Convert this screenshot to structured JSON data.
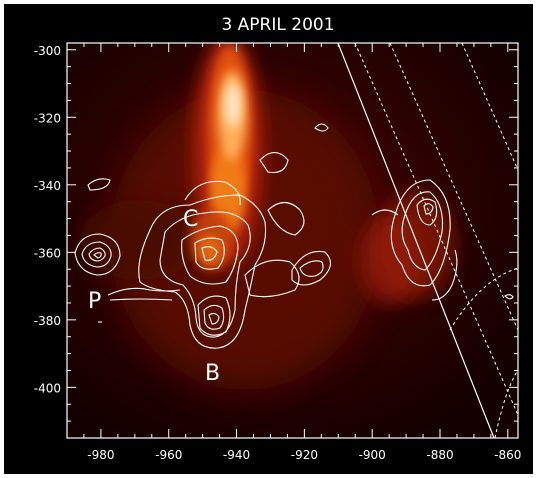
{
  "figure": {
    "title": "3 APRIL 2001",
    "x_axis": {
      "ticks": [
        {
          "value": -980,
          "label": "-980"
        },
        {
          "value": -960,
          "label": "-960"
        },
        {
          "value": -940,
          "label": "-940"
        },
        {
          "value": -920,
          "label": "-920"
        },
        {
          "value": -900,
          "label": "-900"
        },
        {
          "value": -880,
          "label": "-880"
        },
        {
          "value": -860,
          "label": "-860"
        }
      ]
    },
    "y_axis": {
      "ticks": [
        {
          "value": -300,
          "label": "-300"
        },
        {
          "value": -320,
          "label": "-320"
        },
        {
          "value": -340,
          "label": "-340"
        },
        {
          "value": -360,
          "label": "-360"
        },
        {
          "value": -380,
          "label": "-380"
        },
        {
          "value": -400,
          "label": "-400"
        }
      ]
    },
    "source_labels": [
      {
        "id": "C",
        "text": "C"
      },
      {
        "id": "P",
        "text": "P"
      },
      {
        "id": "B",
        "text": "B"
      }
    ],
    "colors": {
      "frame_background": "#000000",
      "page_background": "#ffffff",
      "annotation": "#ffffff",
      "image_low": "#2a0200",
      "image_mid": "#a51e05",
      "image_high": "#ffffff"
    }
  }
}
